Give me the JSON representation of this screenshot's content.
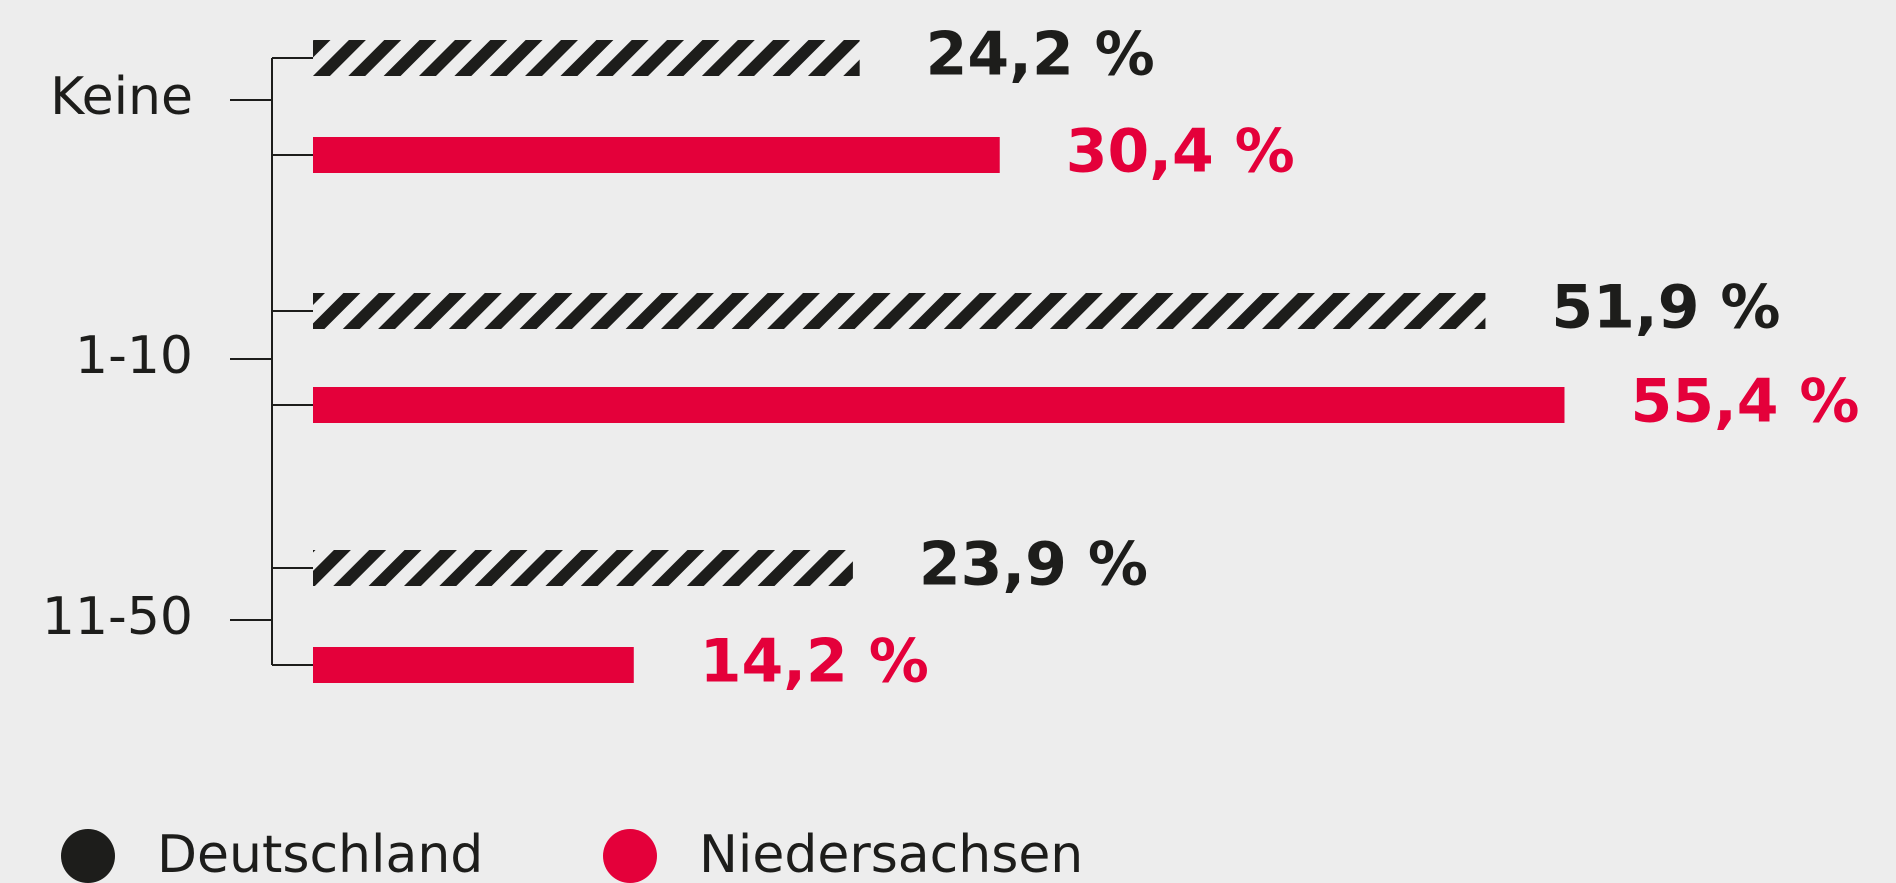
{
  "chart_data": {
    "type": "bar",
    "orientation": "horizontal",
    "categories": [
      "Keine",
      "1-10",
      "11-50"
    ],
    "series": [
      {
        "name": "Deutschland",
        "color": "#1d1d1b",
        "hatch": true,
        "values": [
          24.2,
          51.9,
          23.9
        ],
        "value_labels": [
          "24,2 %",
          "51,9 %",
          "23,9 %"
        ]
      },
      {
        "name": "Niedersachsen",
        "color": "#e4003a",
        "hatch": false,
        "values": [
          30.4,
          55.4,
          14.2
        ],
        "value_labels": [
          "30,4 %",
          "55,4 %",
          "14,2 %"
        ]
      }
    ]
  }
}
